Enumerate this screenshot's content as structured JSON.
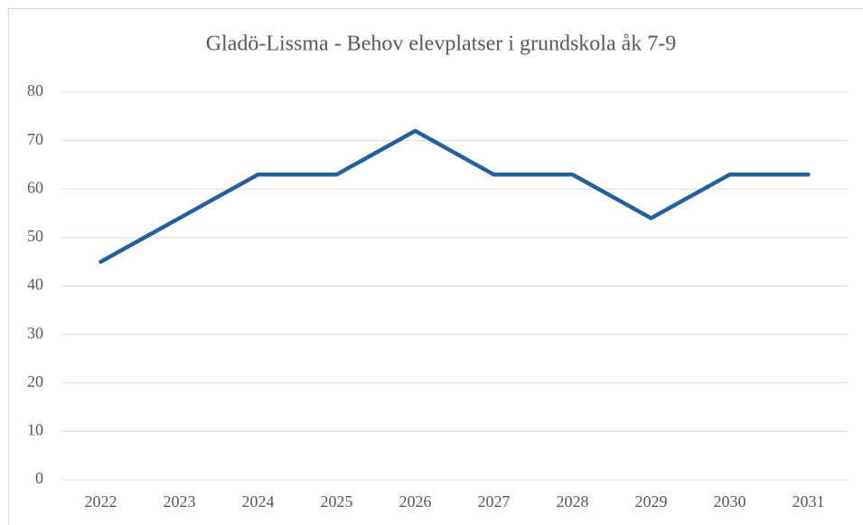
{
  "chart_data": {
    "type": "line",
    "title": "Gladö-Lissma - Behov elevplatser i grundskola åk 7-9",
    "categories": [
      "2022",
      "2023",
      "2024",
      "2025",
      "2026",
      "2027",
      "2028",
      "2029",
      "2030",
      "2031"
    ],
    "series": [
      {
        "color": "#245f9e",
        "values": [
          45,
          54,
          63,
          63,
          72,
          63,
          63,
          54,
          63,
          63
        ]
      }
    ],
    "ylim": [
      0,
      80
    ],
    "yticks": [
      0,
      10,
      20,
      30,
      40,
      50,
      60,
      70,
      80
    ],
    "grid": true
  }
}
